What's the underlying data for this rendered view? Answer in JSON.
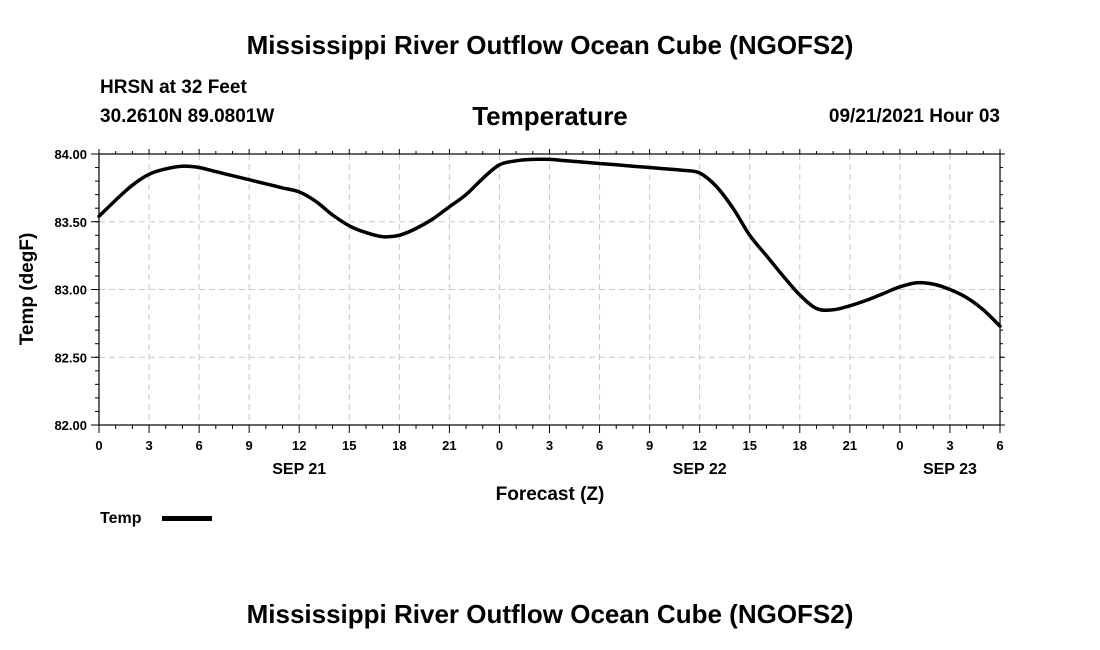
{
  "header": {
    "title": "Mississippi River Outflow Ocean Cube (NGOFS2)",
    "station": "HRSN at 32 Feet",
    "coords": "30.2610N  89.0801W",
    "subtitle": "Temperature",
    "datetime": "09/21/2021 Hour 03"
  },
  "footer": {
    "title": "Mississippi River Outflow Ocean Cube (NGOFS2)"
  },
  "legend": {
    "label": "Temp",
    "color": "#000000"
  },
  "chart_data": {
    "type": "line",
    "title": "Temperature",
    "xlabel": "Forecast (Z)",
    "ylabel": "Temp (degF)",
    "xlim": [
      0,
      54
    ],
    "ylim": [
      82.0,
      84.0
    ],
    "grid": true,
    "y_ticks": [
      "82.00",
      "82.50",
      "83.00",
      "83.50",
      "84.00"
    ],
    "x_tick_labels": [
      "0",
      "3",
      "6",
      "9",
      "12",
      "15",
      "18",
      "21",
      "0",
      "3",
      "6",
      "9",
      "12",
      "15",
      "18",
      "21",
      "0",
      "3",
      "6"
    ],
    "date_labels": [
      {
        "x": 12,
        "label": "SEP 21"
      },
      {
        "x": 36,
        "label": "SEP 22"
      },
      {
        "x": 51,
        "label": "SEP 23"
      }
    ],
    "series": [
      {
        "name": "Temp",
        "x": [
          0,
          1,
          2,
          3,
          4,
          5,
          6,
          7,
          8,
          9,
          10,
          11,
          12,
          13,
          14,
          15,
          16,
          17,
          18,
          19,
          20,
          21,
          22,
          23,
          24,
          25,
          26,
          27,
          28,
          29,
          30,
          31,
          32,
          33,
          34,
          35,
          36,
          37,
          38,
          39,
          40,
          41,
          42,
          43,
          44,
          45,
          46,
          47,
          48,
          49,
          50,
          51,
          52,
          53,
          54
        ],
        "values": [
          83.54,
          83.66,
          83.77,
          83.85,
          83.89,
          83.91,
          83.9,
          83.87,
          83.84,
          83.81,
          83.78,
          83.75,
          83.72,
          83.65,
          83.55,
          83.47,
          83.42,
          83.39,
          83.4,
          83.45,
          83.52,
          83.61,
          83.7,
          83.82,
          83.92,
          83.95,
          83.96,
          83.96,
          83.95,
          83.94,
          83.93,
          83.92,
          83.91,
          83.9,
          83.89,
          83.88,
          83.86,
          83.76,
          83.6,
          83.4,
          83.25,
          83.1,
          82.96,
          82.86,
          82.85,
          82.88,
          82.92,
          82.97,
          83.02,
          83.05,
          83.04,
          83.0,
          82.94,
          82.85,
          82.73
        ]
      }
    ]
  }
}
